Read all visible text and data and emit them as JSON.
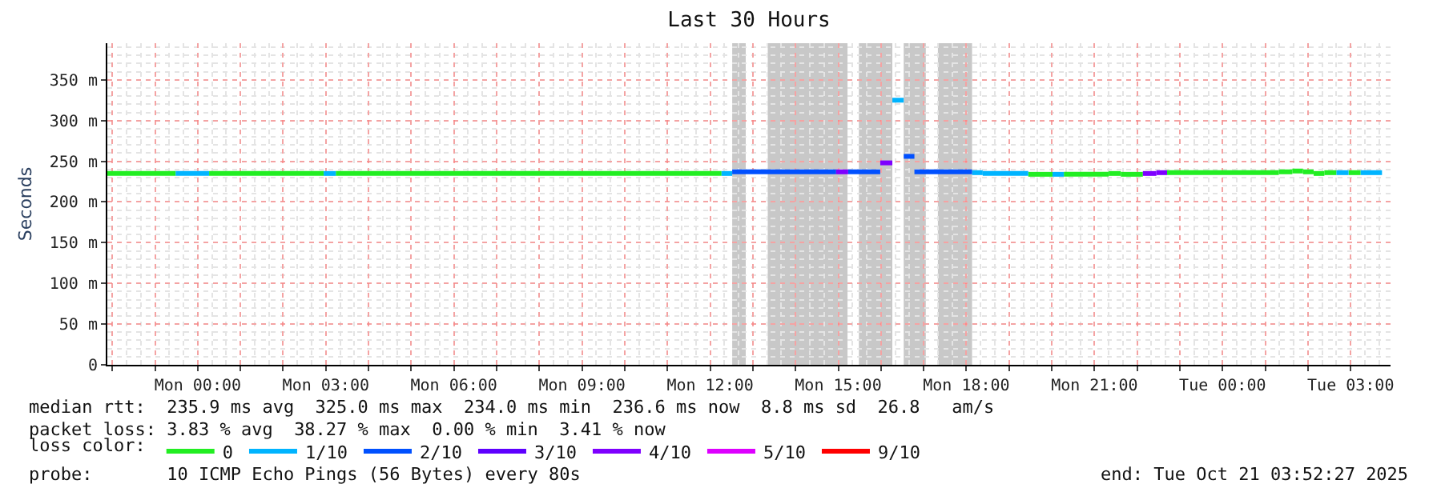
{
  "chart_data": {
    "type": "line",
    "title": "Last 30 Hours",
    "ylabel": "Seconds",
    "legend_title": "loss color:",
    "legend": "bottom",
    "grid": true,
    "xlim": [
      "2025-10-19T21:53",
      "2025-10-21T03:56"
    ],
    "xticks": [
      {
        "value": "2025-10-19T22:00",
        "label": null
      },
      {
        "value": "2025-10-19T23:00",
        "label": null
      },
      {
        "value": "2025-10-20T00:00",
        "label": "Mon 00:00"
      },
      {
        "value": "2025-10-20T01:00",
        "label": null
      },
      {
        "value": "2025-10-20T02:00",
        "label": null
      },
      {
        "value": "2025-10-20T03:00",
        "label": "Mon 03:00"
      },
      {
        "value": "2025-10-20T04:00",
        "label": null
      },
      {
        "value": "2025-10-20T05:00",
        "label": null
      },
      {
        "value": "2025-10-20T06:00",
        "label": "Mon 06:00"
      },
      {
        "value": "2025-10-20T07:00",
        "label": null
      },
      {
        "value": "2025-10-20T08:00",
        "label": null
      },
      {
        "value": "2025-10-20T09:00",
        "label": "Mon 09:00"
      },
      {
        "value": "2025-10-20T10:00",
        "label": null
      },
      {
        "value": "2025-10-20T11:00",
        "label": null
      },
      {
        "value": "2025-10-20T12:00",
        "label": "Mon 12:00"
      },
      {
        "value": "2025-10-20T13:00",
        "label": null
      },
      {
        "value": "2025-10-20T14:00",
        "label": null
      },
      {
        "value": "2025-10-20T15:00",
        "label": "Mon 15:00"
      },
      {
        "value": "2025-10-20T16:00",
        "label": null
      },
      {
        "value": "2025-10-20T17:00",
        "label": null
      },
      {
        "value": "2025-10-20T18:00",
        "label": "Mon 18:00"
      },
      {
        "value": "2025-10-20T19:00",
        "label": null
      },
      {
        "value": "2025-10-20T20:00",
        "label": null
      },
      {
        "value": "2025-10-20T21:00",
        "label": "Mon 21:00"
      },
      {
        "value": "2025-10-20T22:00",
        "label": null
      },
      {
        "value": "2025-10-20T23:00",
        "label": null
      },
      {
        "value": "2025-10-21T00:00",
        "label": "Tue 00:00"
      },
      {
        "value": "2025-10-21T01:00",
        "label": null
      },
      {
        "value": "2025-10-21T02:00",
        "label": null
      },
      {
        "value": "2025-10-21T03:00",
        "label": "Tue 03:00"
      }
    ],
    "ylim": [
      0,
      395
    ],
    "yticks": [
      0,
      {
        "value": 50,
        "label": "50 m"
      },
      {
        "value": 100,
        "label": "100 m"
      },
      {
        "value": 150,
        "label": "150 m"
      },
      {
        "value": 200,
        "label": "200 m"
      },
      {
        "value": 250,
        "label": "250 m"
      },
      {
        "value": 300,
        "label": "300 m"
      },
      {
        "value": 350,
        "label": "350 m"
      }
    ],
    "annotations": [
      "median rtt:  235.9 ms avg  325.0 ms max  234.0 ms min  236.6 ms now  8.8 ms sd  26.8   am/s",
      "packet loss: 3.83 % avg  38.27 % max  0.00 % min  3.41 % now",
      "probe:       10 ICMP Echo Pings (56 Bytes) every 80s",
      "end: Tue Oct 21 03:52:27 2025"
    ],
    "series": [
      {
        "name": "0",
        "color": "#22ee22",
        "x": [
          "2025-10-19T21:53",
          "2025-10-19T23:29",
          "2025-10-20T00:16",
          "2025-10-20T02:57",
          "2025-10-20T03:14",
          "2025-10-20T12:16",
          "2025-10-20T19:27",
          "2025-10-20T20:01",
          "2025-10-20T20:17",
          "2025-10-20T21:20",
          "2025-10-20T21:20",
          "2025-10-20T21:37",
          "2025-10-20T21:37",
          "2025-10-20T22:08",
          "2025-10-20T22:42",
          "2025-10-21T01:19",
          "2025-10-21T01:19",
          "2025-10-21T01:38",
          "2025-10-21T01:38",
          "2025-10-21T01:53",
          "2025-10-21T01:53",
          "2025-10-21T02:08",
          "2025-10-21T02:08",
          "2025-10-21T02:23",
          "2025-10-21T02:23",
          "2025-10-21T02:40",
          "2025-10-21T02:57",
          "2025-10-21T03:14"
        ],
        "values": [
          235,
          235,
          235,
          235,
          235,
          235,
          234,
          234,
          234,
          234,
          235,
          235,
          234,
          234,
          236,
          236,
          237,
          237,
          238,
          238,
          237,
          237,
          235,
          235,
          236,
          236,
          236,
          236
        ]
      },
      {
        "name": "1/10",
        "color": "#00b4ff",
        "x": [
          "2025-10-19T23:29",
          "2025-10-20T00:16",
          "2025-10-20T02:57",
          "2025-10-20T03:14",
          "2025-10-20T12:16",
          "2025-10-20T12:31",
          "2025-10-20T16:16",
          "2025-10-20T16:32",
          "2025-10-20T18:08",
          "2025-10-20T18:23",
          "2025-10-20T18:23",
          "2025-10-20T19:27",
          "2025-10-20T20:01",
          "2025-10-20T20:17",
          "2025-10-21T02:40",
          "2025-10-21T02:57",
          "2025-10-21T03:14",
          "2025-10-21T03:44"
        ],
        "values": [
          235,
          235,
          235,
          235,
          235,
          235,
          325,
          325,
          236,
          236,
          235,
          235,
          234,
          234,
          236,
          236,
          236,
          236
        ]
      },
      {
        "name": "2/10",
        "color": "#0050ff",
        "x": [
          "2025-10-20T12:31",
          "2025-10-20T14:57",
          "2025-10-20T15:14",
          "2025-10-20T15:59",
          "2025-10-20T16:32",
          "2025-10-20T16:47",
          "2025-10-20T16:47",
          "2025-10-20T18:08"
        ],
        "values": [
          237,
          237,
          237,
          237,
          256,
          256,
          237,
          237
        ]
      },
      {
        "name": "3/10",
        "color": "#5e00ff"
      },
      {
        "name": "4/10",
        "color": "#7e00ff",
        "x": [
          "2025-10-20T14:57",
          "2025-10-20T15:14",
          "2025-10-20T15:59",
          "2025-10-20T16:16",
          "2025-10-20T22:08",
          "2025-10-20T22:27",
          "2025-10-20T22:27",
          "2025-10-20T22:42"
        ],
        "values": [
          237,
          237,
          248,
          248,
          235,
          235,
          236,
          236
        ]
      },
      {
        "name": "5/10",
        "color": "#dd00ff"
      },
      {
        "name": "9/10",
        "color": "#ff0000"
      }
    ],
    "bands": [
      {
        "axis": "x",
        "from": "2025-10-20T12:31",
        "to": "2025-10-20T12:50",
        "color": "#c8c8c8"
      },
      {
        "axis": "x",
        "from": "2025-10-20T13:21",
        "to": "2025-10-20T15:13",
        "color": "#c8c8c8"
      },
      {
        "axis": "x",
        "from": "2025-10-20T15:29",
        "to": "2025-10-20T16:16",
        "color": "#c8c8c8"
      },
      {
        "axis": "x",
        "from": "2025-10-20T16:32",
        "to": "2025-10-20T17:03",
        "color": "#c8c8c8"
      },
      {
        "axis": "x",
        "from": "2025-10-20T17:20",
        "to": "2025-10-20T18:08",
        "color": "#c8c8c8"
      }
    ]
  }
}
